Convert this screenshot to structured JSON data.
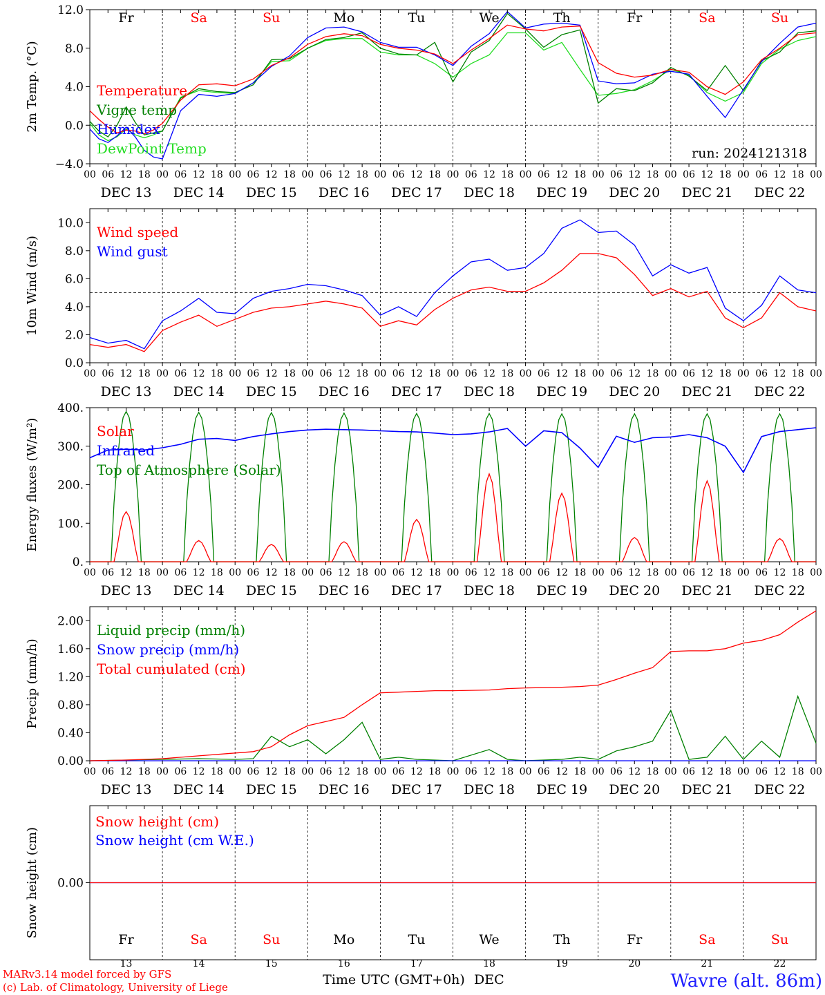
{
  "colors": {
    "red": "#ff0000",
    "darkgreen": "#008000",
    "blue": "#0000ff",
    "lightgreen": "#22dd22",
    "weekend": "#ff0000",
    "weekday": "#000000",
    "grid": "#000000"
  },
  "header": {
    "model_line": "MARv3.14 model forced by GFS",
    "credit_line": "(c) Lab. of Climatology, University of Liege",
    "axis_title_prefix": "Time UTC (GMT+0h)",
    "axis_title_month": "DEC",
    "location": "Wavre (alt. 86m)",
    "run": "run: 2024121318"
  },
  "time_axis": {
    "hour_labels": [
      "00",
      "06",
      "12",
      "18"
    ],
    "final_label": "00",
    "date_labels": [
      "DEC 13",
      "DEC 14",
      "DEC 15",
      "DEC 16",
      "DEC 17",
      "DEC 18",
      "DEC 19",
      "DEC 20",
      "DEC 21",
      "DEC 22"
    ],
    "day_names": [
      "Fr",
      "Sa",
      "Su",
      "Mo",
      "Tu",
      "We",
      "Th",
      "Fr",
      "Sa",
      "Su"
    ],
    "weekend": [
      false,
      true,
      true,
      false,
      false,
      false,
      false,
      false,
      true,
      true
    ],
    "day_numbers": [
      "13",
      "14",
      "15",
      "16",
      "17",
      "18",
      "19",
      "20",
      "21",
      "22"
    ]
  },
  "chart_data": [
    {
      "type": "line",
      "ylabel": "2m Temp. (°C)",
      "ylim": [
        -4,
        12
      ],
      "yticks": [
        "−4.0",
        "0.0",
        "4.0",
        "8.0",
        "12.0"
      ],
      "yticks_values": [
        -4,
        0,
        4,
        8,
        12
      ],
      "dashed_y": 0,
      "x": [
        0,
        3,
        6,
        9,
        12,
        15,
        18,
        21,
        24,
        30,
        36,
        42,
        48,
        54,
        60,
        66,
        72,
        78,
        84,
        90,
        96,
        102,
        108,
        114,
        120,
        126,
        132,
        138,
        144,
        150,
        156,
        162,
        168,
        174,
        180,
        186,
        192,
        198,
        204,
        210,
        216,
        222,
        228,
        234,
        240
      ],
      "series": [
        {
          "name": "Temperature",
          "color": "red",
          "values": [
            1.5,
            0.6,
            -0.2,
            -0.8,
            -0.5,
            -0.6,
            -0.9,
            -0.5,
            0.2,
            2.6,
            4.2,
            4.3,
            4.1,
            4.8,
            6.2,
            7.0,
            8.4,
            9.2,
            9.5,
            9.3,
            8.4,
            8.0,
            7.8,
            7.4,
            6.4,
            7.8,
            9.0,
            10.4,
            10.0,
            9.8,
            10.2,
            10.3,
            6.5,
            5.4,
            5.0,
            5.2,
            5.8,
            5.5,
            4.0,
            3.2,
            4.5,
            6.8,
            8.0,
            9.4,
            9.6
          ]
        },
        {
          "name": "Vigne temp",
          "color": "darkgreen",
          "values": [
            0.4,
            -0.6,
            -1.2,
            0.0,
            1.9,
            0.3,
            -1.0,
            -0.8,
            -0.6,
            2.8,
            3.8,
            3.5,
            3.4,
            4.2,
            6.8,
            6.9,
            8.0,
            8.9,
            9.1,
            9.6,
            8.0,
            7.4,
            7.3,
            8.6,
            4.5,
            7.6,
            8.8,
            11.6,
            10.0,
            8.1,
            9.4,
            9.9,
            2.3,
            3.8,
            3.6,
            4.4,
            6.0,
            5.1,
            3.6,
            6.2,
            3.6,
            6.7,
            7.6,
            9.6,
            9.8
          ]
        },
        {
          "name": "Humidex",
          "color": "blue",
          "values": [
            -0.4,
            -1.4,
            -1.8,
            -1.1,
            -0.2,
            -1.2,
            -2.6,
            -3.3,
            -3.5,
            1.5,
            3.2,
            3.0,
            3.3,
            4.4,
            6.1,
            7.2,
            9.1,
            10.1,
            10.2,
            9.7,
            8.6,
            8.1,
            8.1,
            7.3,
            6.2,
            8.2,
            9.5,
            11.8,
            10.1,
            10.5,
            10.6,
            10.4,
            4.6,
            4.3,
            4.4,
            5.3,
            5.6,
            5.3,
            3.0,
            0.8,
            3.7,
            6.6,
            8.5,
            10.2,
            10.6
          ]
        },
        {
          "name": "DewPoint Temp",
          "color": "lightgreen",
          "values": [
            0.2,
            -1.0,
            -1.6,
            -1.2,
            -0.4,
            -1.0,
            -1.3,
            -1.0,
            -0.6,
            2.9,
            3.6,
            3.4,
            3.3,
            4.4,
            6.6,
            6.7,
            8.0,
            8.8,
            9.0,
            9.0,
            7.6,
            7.3,
            7.3,
            6.4,
            5.0,
            6.4,
            7.3,
            9.6,
            9.6,
            7.8,
            8.6,
            5.8,
            3.1,
            3.3,
            3.7,
            4.6,
            5.8,
            5.2,
            3.4,
            2.5,
            3.4,
            6.4,
            7.9,
            8.8,
            9.2
          ]
        }
      ],
      "annotation": "run: 2024121318"
    },
    {
      "type": "line",
      "ylabel": "10m Wind (m/s)",
      "ylim": [
        0,
        11
      ],
      "yticks": [
        "0.0",
        "2.0",
        "4.0",
        "6.0",
        "8.0",
        "10.0"
      ],
      "yticks_values": [
        0,
        2,
        4,
        6,
        8,
        10
      ],
      "dashed_y": 5,
      "x": [
        0,
        6,
        12,
        18,
        24,
        30,
        36,
        42,
        48,
        54,
        60,
        66,
        72,
        78,
        84,
        90,
        96,
        102,
        108,
        114,
        120,
        126,
        132,
        138,
        144,
        150,
        156,
        162,
        168,
        174,
        180,
        186,
        192,
        198,
        204,
        210,
        216,
        222,
        228,
        234,
        240
      ],
      "series": [
        {
          "name": "Wind speed",
          "color": "red",
          "values": [
            1.3,
            1.1,
            1.3,
            0.8,
            2.3,
            2.9,
            3.4,
            2.6,
            3.1,
            3.6,
            3.9,
            4.0,
            4.2,
            4.4,
            4.2,
            3.9,
            2.6,
            3.0,
            2.7,
            3.8,
            4.6,
            5.2,
            5.4,
            5.1,
            5.1,
            5.7,
            6.6,
            7.8,
            7.8,
            7.5,
            6.3,
            4.8,
            5.3,
            4.7,
            5.1,
            3.2,
            2.5,
            3.2,
            5.0,
            4.0,
            3.7
          ]
        },
        {
          "name": "Wind gust",
          "color": "blue",
          "values": [
            1.8,
            1.4,
            1.6,
            1.0,
            3.0,
            3.7,
            4.6,
            3.6,
            3.5,
            4.6,
            5.1,
            5.3,
            5.6,
            5.5,
            5.2,
            4.8,
            3.4,
            4.0,
            3.3,
            5.0,
            6.2,
            7.2,
            7.4,
            6.6,
            6.8,
            7.8,
            9.6,
            10.2,
            9.3,
            9.4,
            8.4,
            6.2,
            7.0,
            6.4,
            6.8,
            3.9,
            3.0,
            4.1,
            6.2,
            5.2,
            5.0
          ]
        }
      ]
    },
    {
      "type": "line",
      "ylabel": "Energy fluxes (W/m²)",
      "ylim": [
        0,
        400
      ],
      "yticks": [
        "0.",
        "100.",
        "200.",
        "300.",
        "400."
      ],
      "yticks_values": [
        0,
        100,
        200,
        300,
        400
      ],
      "series": [
        {
          "name": "Solar",
          "color": "red",
          "day_peaks": [
            130,
            55,
            45,
            52,
            110,
            228,
            178,
            63,
            210,
            60
          ]
        },
        {
          "name": "Infrared",
          "color": "blue",
          "x": [
            0,
            6,
            12,
            18,
            24,
            30,
            36,
            42,
            48,
            54,
            60,
            66,
            72,
            78,
            84,
            90,
            96,
            102,
            108,
            114,
            120,
            126,
            132,
            138,
            144,
            150,
            156,
            162,
            168,
            174,
            180,
            186,
            192,
            198,
            204,
            210,
            216,
            222,
            228,
            234,
            240
          ],
          "values": [
            270,
            290,
            292,
            290,
            296,
            305,
            318,
            320,
            315,
            325,
            332,
            338,
            342,
            344,
            343,
            342,
            340,
            338,
            337,
            334,
            330,
            332,
            337,
            346,
            300,
            340,
            335,
            295,
            245,
            326,
            310,
            322,
            324,
            330,
            322,
            300,
            232,
            325,
            338,
            343,
            348
          ]
        },
        {
          "name": "Top of Atmosphere (Solar)",
          "color": "darkgreen",
          "day_peaks": [
            390,
            388,
            387,
            386,
            385,
            385,
            384,
            384,
            384,
            384
          ]
        }
      ]
    },
    {
      "type": "line",
      "ylabel": "Precip (mm/h)",
      "ylim": [
        0,
        2.2
      ],
      "yticks": [
        "0.00",
        "0.40",
        "0.80",
        "1.20",
        "1.60",
        "2.00"
      ],
      "yticks_values": [
        0,
        0.4,
        0.8,
        1.2,
        1.6,
        2.0
      ],
      "series": [
        {
          "name": "Liquid precip (mm/h)",
          "color": "darkgreen",
          "x": [
            0,
            12,
            24,
            36,
            48,
            54,
            60,
            66,
            72,
            78,
            84,
            90,
            96,
            102,
            108,
            114,
            120,
            132,
            138,
            144,
            156,
            162,
            168,
            174,
            180,
            186,
            192,
            198,
            204,
            210,
            216,
            222,
            228,
            234,
            240
          ],
          "values": [
            0,
            0.01,
            0.02,
            0.03,
            0.02,
            0.03,
            0.35,
            0.2,
            0.3,
            0.1,
            0.3,
            0.55,
            0.02,
            0.05,
            0.02,
            0.01,
            0,
            0.16,
            0.02,
            0,
            0.02,
            0.05,
            0.02,
            0.14,
            0.2,
            0.28,
            0.72,
            0.02,
            0.05,
            0.35,
            0.02,
            0.28,
            0.05,
            0.92,
            0.25
          ]
        },
        {
          "name": "Snow precip (mm/h)",
          "color": "blue",
          "x": [
            0,
            240
          ],
          "values": [
            0,
            0
          ]
        },
        {
          "name": "Total cumulated (cm)",
          "color": "red",
          "x": [
            0,
            12,
            24,
            36,
            48,
            54,
            60,
            66,
            72,
            78,
            84,
            90,
            96,
            102,
            108,
            114,
            120,
            132,
            138,
            144,
            156,
            162,
            168,
            174,
            180,
            186,
            192,
            198,
            204,
            210,
            216,
            222,
            228,
            234,
            240
          ],
          "values": [
            0,
            0.01,
            0.03,
            0.07,
            0.11,
            0.13,
            0.2,
            0.37,
            0.5,
            0.56,
            0.62,
            0.8,
            0.97,
            0.98,
            0.99,
            1.0,
            1.0,
            1.01,
            1.03,
            1.04,
            1.05,
            1.06,
            1.08,
            1.16,
            1.25,
            1.33,
            1.56,
            1.57,
            1.57,
            1.6,
            1.68,
            1.72,
            1.8,
            1.98,
            2.14
          ]
        }
      ]
    },
    {
      "type": "line",
      "ylabel": "Snow height (cm)",
      "ylim": [
        -1,
        1
      ],
      "yticks": [
        "0.00"
      ],
      "yticks_values": [
        0
      ],
      "series": [
        {
          "name": "Snow height (cm)",
          "color": "red",
          "x": [
            0,
            240
          ],
          "values": [
            0,
            0
          ]
        },
        {
          "name": "Snow height (cm W.E.)",
          "color": "blue",
          "x": [
            0,
            240
          ],
          "values": [
            0,
            0
          ]
        }
      ]
    }
  ]
}
